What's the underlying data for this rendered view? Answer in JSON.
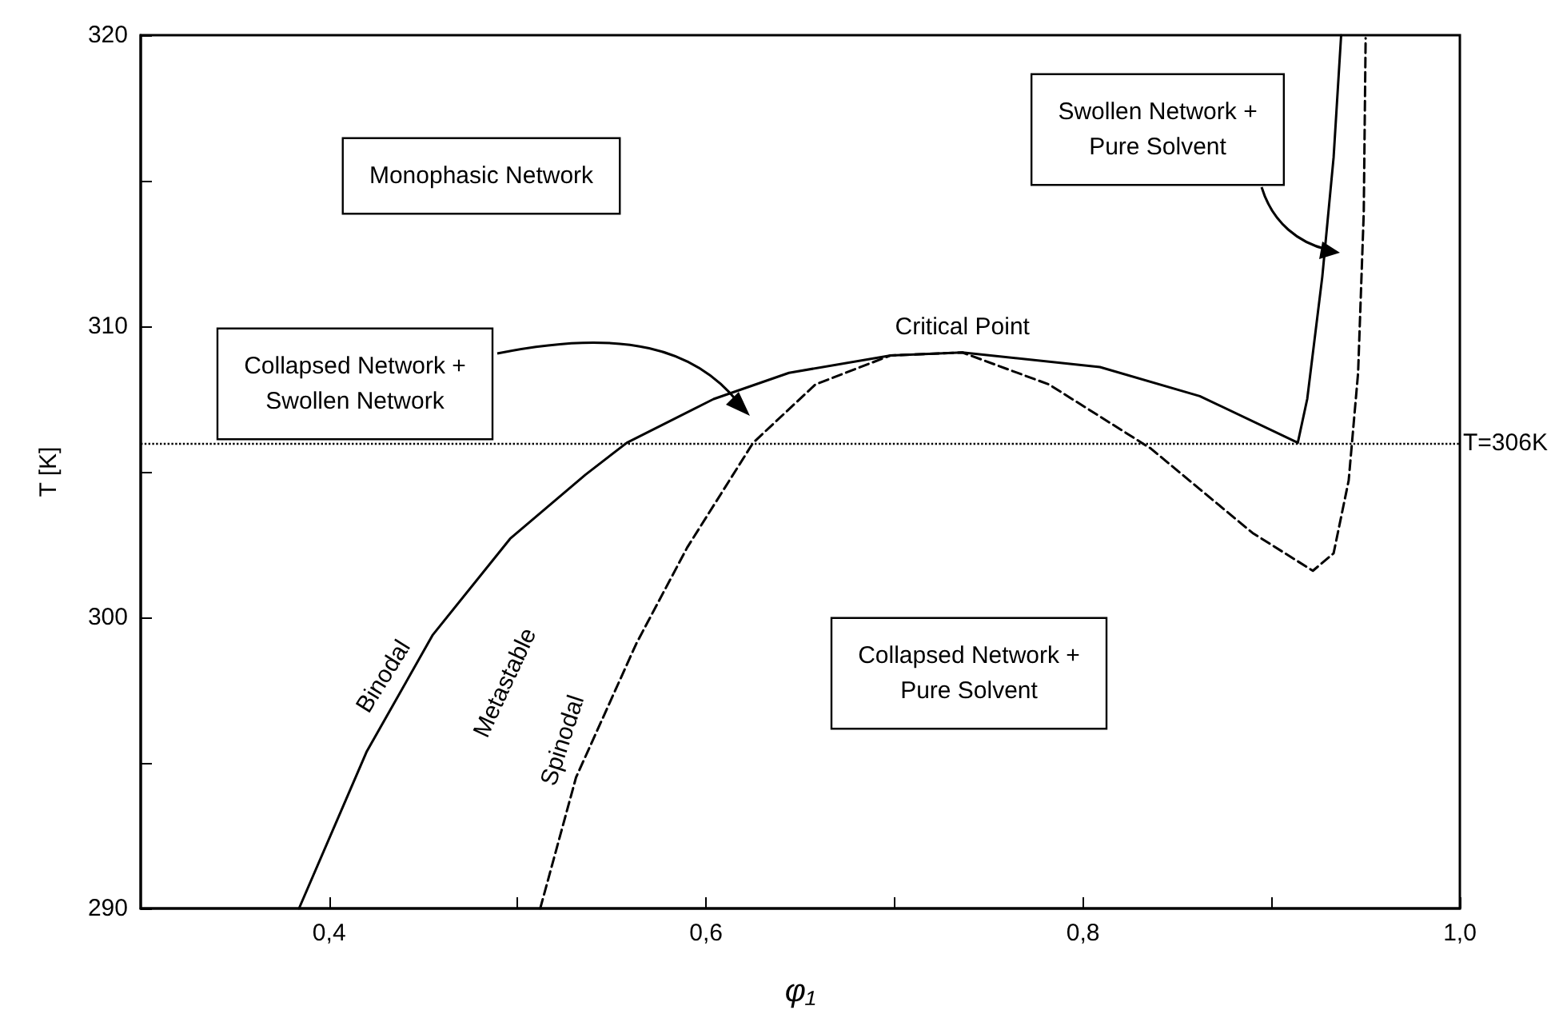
{
  "chart_data": {
    "type": "line",
    "xlabel": "φ₁",
    "ylabel": "T [K]",
    "xlim": [
      0.3,
      1.0
    ],
    "xticks": [
      {
        "value": 0.4,
        "label": "0,4"
      },
      {
        "value": 0.5,
        "label": null
      },
      {
        "value": 0.6,
        "label": "0,6"
      },
      {
        "value": 0.7,
        "label": null
      },
      {
        "value": 0.8,
        "label": "0,8"
      },
      {
        "value": 0.9,
        "label": null
      },
      {
        "value": 1.0,
        "label": "1,0"
      }
    ],
    "ylim": [
      290,
      320
    ],
    "yticks": [
      290,
      {
        "value": 295,
        "label": null
      },
      300,
      {
        "value": 305,
        "label": null
      },
      310,
      {
        "value": 315,
        "label": null
      },
      320
    ],
    "series": [
      {
        "name": "Binodal",
        "color": "#000000",
        "line_style": "solid",
        "x": [
          0.384,
          0.42,
          0.455,
          0.496,
          0.536,
          0.558,
          0.604,
          0.644,
          0.698,
          0.736,
          0.809,
          0.862,
          0.914,
          0.919,
          0.927,
          0.933,
          0.937
        ],
        "values": [
          290,
          295.4,
          299.4,
          302.7,
          304.9,
          306.0,
          307.5,
          308.4,
          309.0,
          309.1,
          308.6,
          307.6,
          306.0,
          307.5,
          311.7,
          315.8,
          320.0
        ]
      },
      {
        "name": "Spinodal",
        "color": "#000000",
        "line_style": "dashed",
        "x": [
          0.512,
          0.531,
          0.563,
          0.59,
          0.625,
          0.658,
          0.698,
          0.736,
          0.782,
          0.836,
          0.89,
          0.922,
          0.933,
          0.941,
          0.946,
          0.949,
          0.95
        ],
        "values": [
          290,
          294.5,
          299.1,
          302.4,
          306.0,
          308.0,
          309.0,
          309.1,
          308.0,
          305.8,
          302.9,
          301.6,
          302.2,
          304.7,
          308.4,
          313.9,
          319.9
        ]
      }
    ],
    "ref_lines": [
      {
        "axis": "y",
        "value": 306,
        "label": "T=306K",
        "line_style": "dotted",
        "color": "#000000"
      }
    ],
    "annotations": [
      "Monophasic Network",
      "Collapsed Network +\nSwollen Network",
      "Swollen Network +\nPure Solvent",
      "Collapsed Network +\nPure Solvent",
      "Metastable",
      {
        "text": "Critical Point",
        "x": 0.736,
        "y": 309.1
      }
    ],
    "marker": "none",
    "grid": false
  }
}
